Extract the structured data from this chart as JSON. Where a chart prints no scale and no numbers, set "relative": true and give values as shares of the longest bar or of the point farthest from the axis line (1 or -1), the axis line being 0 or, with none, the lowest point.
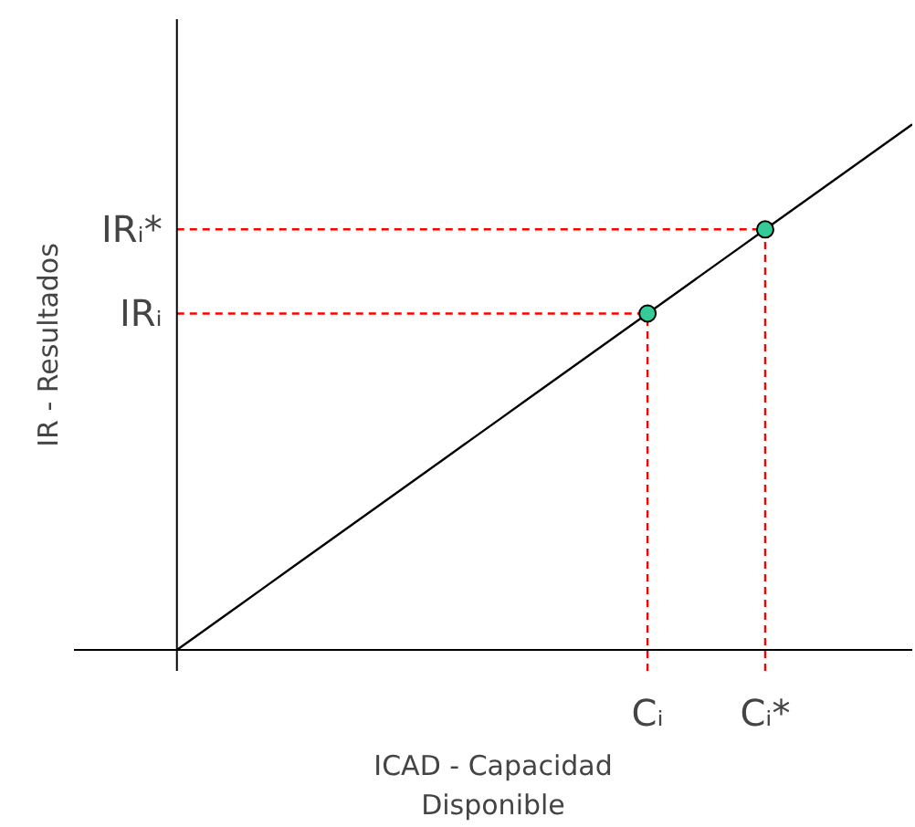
{
  "chart_data": {
    "type": "line",
    "relative": true,
    "xlabel": "ICAD - Capacidad\nDisponible",
    "ylabel": "IR - Resultados",
    "categories": [
      null,
      null,
      null,
      null,
      null,
      null,
      null,
      null,
      null,
      null,
      null,
      null,
      null,
      null,
      null,
      null,
      "Cᵢ",
      null,
      null,
      null,
      "Cᵢ*",
      null,
      null,
      null,
      null,
      null
    ],
    "series": [
      {
        "color": "#000000",
        "values": [
          0,
          0.04,
          0.08,
          0.12,
          0.16,
          0.2,
          0.24,
          0.28,
          0.32,
          0.36,
          0.4,
          0.44,
          0.48,
          0.52,
          0.56,
          0.6,
          0.64,
          0.68,
          0.72,
          0.76,
          0.8,
          0.84,
          0.88,
          0.92,
          0.96,
          1
        ]
      },
      {
        "type": "scatter",
        "color": "#33cc99",
        "marker": "circle",
        "values": [
          null,
          null,
          null,
          null,
          null,
          null,
          null,
          null,
          null,
          null,
          null,
          null,
          null,
          null,
          null,
          null,
          0.64,
          null,
          null,
          null,
          0.8,
          null,
          null,
          null,
          null,
          null
        ]
      }
    ],
    "ref_lines": [
      {
        "axis": "y",
        "value": 0.64,
        "label": "IRᵢ",
        "color": "#ff0000",
        "line_style": "dashed"
      },
      {
        "axis": "y",
        "value": 0.8,
        "label": "IRᵢ*",
        "color": "#ff0000",
        "line_style": "dashed"
      },
      {
        "axis": "x",
        "value": "Cᵢ",
        "color": "#ff0000",
        "line_style": "dashed"
      },
      {
        "axis": "x",
        "value": "Cᵢ*",
        "color": "#ff0000",
        "line_style": "dashed"
      }
    ]
  }
}
